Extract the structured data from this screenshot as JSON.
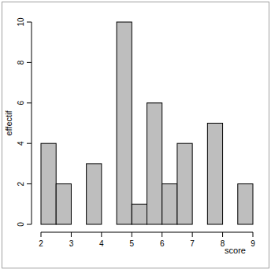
{
  "chart_data": {
    "type": "histogram",
    "x_label": "score",
    "y_label": "effectif",
    "bins": [
      2,
      2.5,
      3,
      3.5,
      4,
      4.5,
      5,
      5.5,
      6,
      6.5,
      7,
      7.5,
      8,
      8.5,
      9
    ],
    "values": [
      4,
      2,
      0,
      3,
      0,
      10,
      1,
      6,
      2,
      4,
      0,
      5,
      0,
      2
    ],
    "color": "#bebebe",
    "xlim": [
      2,
      9
    ],
    "xticks": [
      2,
      3,
      4,
      5,
      6,
      7,
      8,
      9
    ],
    "ylim": [
      0,
      10
    ],
    "yticks": [
      0,
      2,
      4,
      6,
      8,
      10
    ],
    "grid": false
  }
}
